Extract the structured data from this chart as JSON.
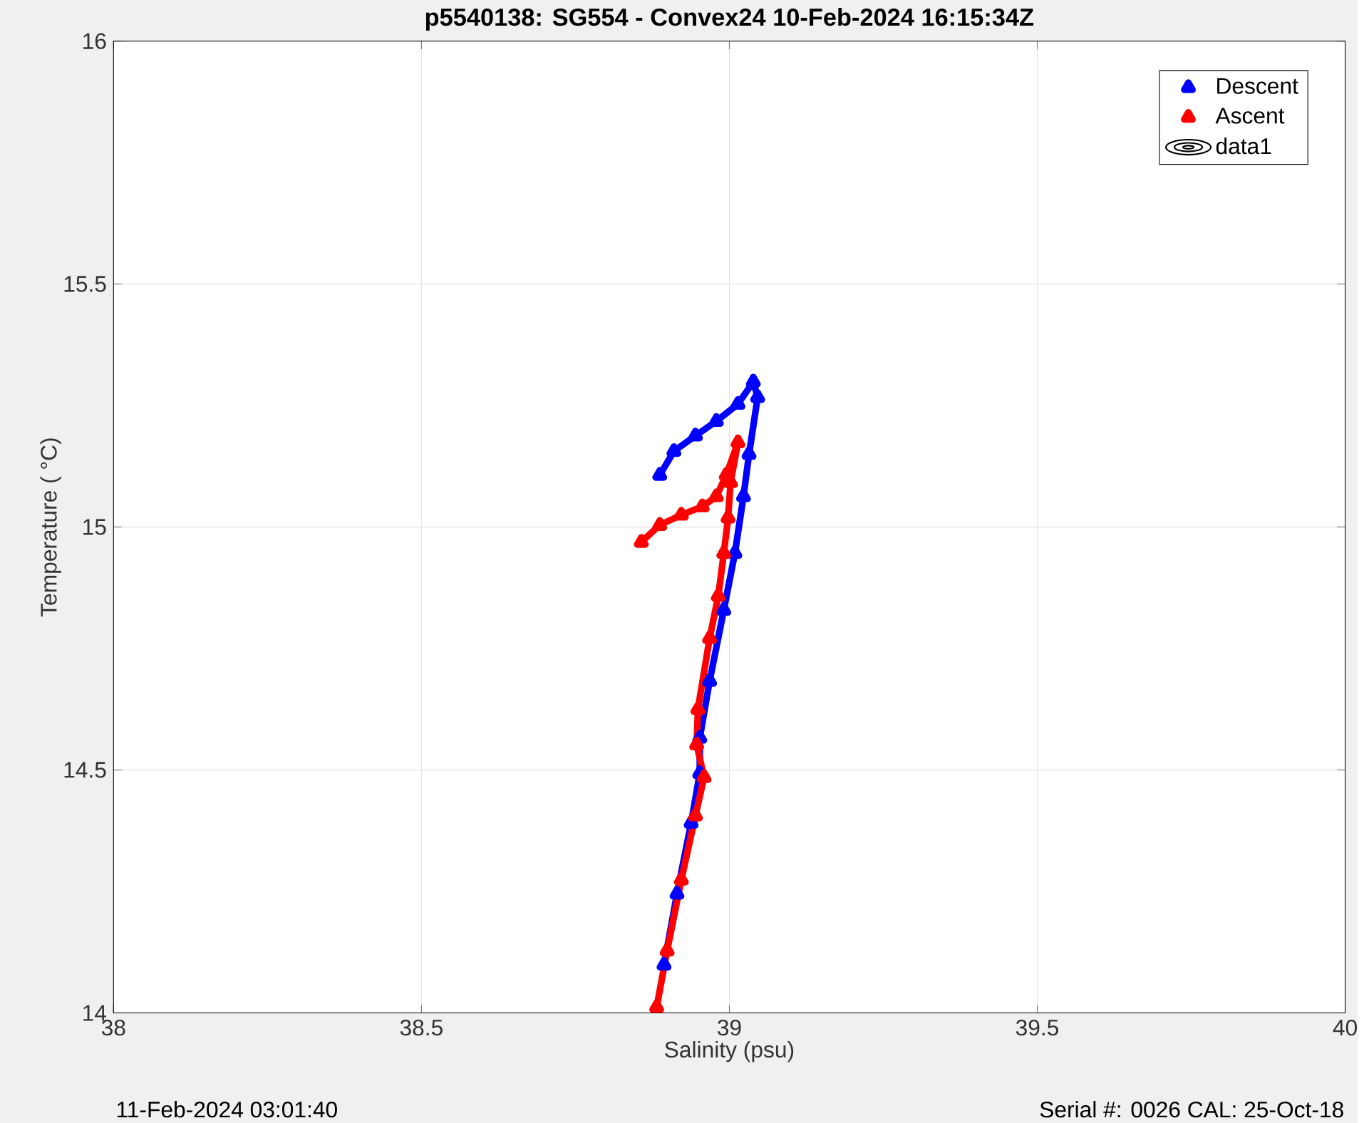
{
  "chart_data": {
    "type": "line",
    "title": "p5540138: SG554 - Convex24 10-Feb-2024 16:15:34Z",
    "xlabel": "Salinity (psu)",
    "ylabel": "Temperature (   °C)",
    "annotations": [
      "11-Feb-2024 03:01:40",
      "Serial #: 0026 CAL: 25-Oct-18"
    ],
    "xlim": [
      38,
      40
    ],
    "ylim": [
      14,
      16
    ],
    "xticks": [
      38,
      38.5,
      39,
      39.5,
      40
    ],
    "yticks": [
      14,
      14.5,
      15,
      15.5,
      16
    ],
    "grid": true,
    "legend": "top right",
    "marker": "triangle",
    "line_style": "solid",
    "series": [
      {
        "name": "Descent",
        "color": "#0000ff",
        "x": [
          38.887,
          38.91,
          38.945,
          38.979,
          39.014,
          39.039,
          39.046,
          39.032,
          39.023,
          39.009,
          38.991,
          38.968,
          38.952,
          38.952,
          38.938,
          38.915,
          38.894
        ],
        "values": [
          15.107,
          15.156,
          15.188,
          15.218,
          15.253,
          15.299,
          15.267,
          15.15,
          15.063,
          14.946,
          14.829,
          14.683,
          14.566,
          14.493,
          14.391,
          14.245,
          14.099
        ]
      },
      {
        "name": "Ascent",
        "color": "#ff0000",
        "x": [
          38.882,
          38.899,
          38.922,
          38.945,
          38.959,
          38.947,
          38.949,
          38.968,
          38.982,
          38.991,
          38.998,
          39.002,
          39.014,
          38.995,
          38.979,
          38.956,
          38.922,
          38.887,
          38.857
        ],
        "values": [
          14.012,
          14.128,
          14.274,
          14.406,
          14.485,
          14.552,
          14.625,
          14.771,
          14.858,
          14.946,
          15.019,
          15.092,
          15.174,
          15.107,
          15.063,
          15.042,
          15.025,
          15.004,
          14.969
        ]
      },
      {
        "name": "data1",
        "type": "other",
        "color": "#000000"
      }
    ]
  }
}
